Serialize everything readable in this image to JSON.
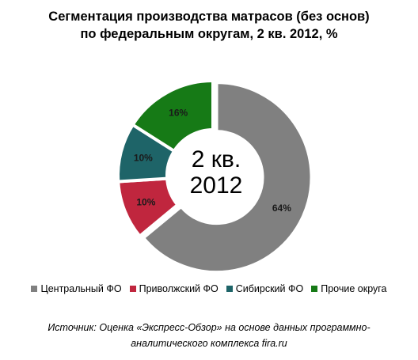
{
  "chart_data": {
    "type": "pie",
    "title_line1": "Сегментация производства матрасов (без основ)",
    "title_line2": "по федеральным округам, 2 кв. 2012, %",
    "center_line1": "2 кв.",
    "center_line2": "2012",
    "slices": [
      {
        "name": "Центральный ФО",
        "value": 64,
        "label": "64%",
        "color": "#808080"
      },
      {
        "name": "Приволжский ФО",
        "value": 10,
        "label": "10%",
        "color": "#C0263E"
      },
      {
        "name": "Сибирский ФО",
        "value": 10,
        "label": "10%",
        "color": "#1E6468"
      },
      {
        "name": "Прочие округа",
        "value": 16,
        "label": "16%",
        "color": "#167A16"
      }
    ],
    "legend_position": "bottom"
  },
  "source": {
    "line1": "Источник:  Оценка «Экспресс-Обзор» на основе данных программно-",
    "line2": "аналитического комплекса fira.ru"
  }
}
